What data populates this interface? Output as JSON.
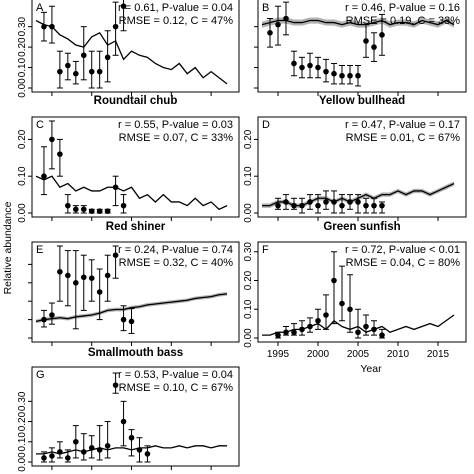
{
  "figure": {
    "y_axis_label": "Relative abundance",
    "x_axis_label": "Year"
  },
  "chart_data": [
    {
      "type": "line",
      "panel": "A",
      "title": "",
      "stats": {
        "line1": "r = 0.61, P-value = 0.04",
        "line2": "RMSE = 0.12, C = 47%"
      },
      "ylim": [
        0,
        0.45
      ],
      "yticks": [
        0,
        0.1,
        0.2,
        0.3
      ],
      "ytick_labels": [
        "0.00",
        "0.10",
        "0.20",
        "0.30"
      ],
      "xlim": [
        1993,
        2018
      ],
      "xticks": [
        1995,
        2000,
        2005,
        2010,
        2015
      ],
      "xtick_labels": [],
      "predicted": {
        "x": [
          1993,
          1994,
          1995,
          1996,
          1997,
          1998,
          1999,
          2000,
          2001,
          2002,
          2003,
          2004,
          2005,
          2006,
          2007,
          2008,
          2009,
          2010,
          2011,
          2012,
          2013,
          2014,
          2015,
          2016,
          2017
        ],
        "y": [
          0.33,
          0.31,
          0.3,
          0.26,
          0.24,
          0.21,
          0.2,
          0.25,
          0.27,
          0.21,
          0.23,
          0.14,
          0.18,
          0.16,
          0.15,
          0.12,
          0.1,
          0.09,
          0.12,
          0.07,
          0.1,
          0.05,
          0.08,
          0.05,
          0.02
        ],
        "band": 0
      },
      "observed": {
        "x": [
          1994,
          1995,
          1996,
          1997,
          1998,
          1999,
          2000,
          2001,
          2002,
          2003,
          2004
        ],
        "y": [
          0.3,
          0.3,
          0.08,
          0.11,
          0.07,
          0.16,
          0.08,
          0.08,
          0.15,
          0.3,
          0.4
        ],
        "lo": [
          0.23,
          0.22,
          0.0,
          0.04,
          0.02,
          0.04,
          0.0,
          0.0,
          0.03,
          0.16,
          0.28
        ],
        "hi": [
          0.37,
          0.4,
          0.18,
          0.17,
          0.13,
          0.3,
          0.18,
          0.18,
          0.28,
          0.42,
          0.45
        ]
      }
    },
    {
      "type": "line",
      "panel": "B",
      "title": "",
      "stats": {
        "line1": "r = 0.46, P-value = 0.16",
        "line2": "RMSE = 0.19, C = 33%"
      },
      "ylim": [
        0,
        0.45
      ],
      "yticks": [
        0,
        0.1,
        0.2,
        0.3
      ],
      "ytick_labels": [],
      "xlim": [
        1993,
        2018
      ],
      "xticks": [
        1995,
        2000,
        2005,
        2010,
        2015
      ],
      "xtick_labels": [],
      "predicted": {
        "x": [
          1993,
          1994,
          1995,
          1996,
          1997,
          1998,
          1999,
          2000,
          2001,
          2002,
          2003,
          2004,
          2005,
          2006,
          2007,
          2008,
          2009,
          2010,
          2011,
          2012,
          2013,
          2014,
          2015,
          2016,
          2017
        ],
        "y": [
          0.31,
          0.32,
          0.33,
          0.33,
          0.32,
          0.32,
          0.33,
          0.33,
          0.32,
          0.32,
          0.31,
          0.32,
          0.31,
          0.31,
          0.32,
          0.33,
          0.31,
          0.32,
          0.32,
          0.31,
          0.33,
          0.32,
          0.31,
          0.33,
          0.31
        ],
        "band": 0.015
      },
      "observed": {
        "x": [
          1994,
          1995,
          1996,
          1997,
          1998,
          1999,
          2000,
          2001,
          2002,
          2003,
          2004,
          2005,
          2006,
          2007,
          2008
        ],
        "y": [
          0.27,
          0.31,
          0.34,
          0.12,
          0.1,
          0.11,
          0.1,
          0.08,
          0.07,
          0.06,
          0.06,
          0.06,
          0.23,
          0.2,
          0.26
        ],
        "lo": [
          0.2,
          0.21,
          0.26,
          0.06,
          0.05,
          0.05,
          0.05,
          0.03,
          0.02,
          0.02,
          0.02,
          0.01,
          0.15,
          0.13,
          0.16
        ],
        "hi": [
          0.34,
          0.4,
          0.42,
          0.18,
          0.15,
          0.17,
          0.15,
          0.14,
          0.12,
          0.11,
          0.11,
          0.11,
          0.31,
          0.27,
          0.36
        ]
      }
    },
    {
      "type": "line",
      "panel": "C",
      "title": "Roundtail chub",
      "stats": {
        "line1": "r = 0.55, P-value = 0.03",
        "line2": "RMSE = 0.07, C = 33%"
      },
      "ylim": [
        0,
        0.25
      ],
      "yticks": [
        0,
        0.1,
        0.2
      ],
      "ytick_labels": [
        "0.00",
        "0.10",
        "0.20"
      ],
      "xlim": [
        1993,
        2018
      ],
      "xticks": [
        1995,
        2000,
        2005,
        2010,
        2015
      ],
      "xtick_labels": [],
      "predicted": {
        "x": [
          1993,
          1994,
          1995,
          1996,
          1997,
          1998,
          1999,
          2000,
          2001,
          2002,
          2003,
          2004,
          2005,
          2006,
          2007,
          2008,
          2009,
          2010,
          2011,
          2012,
          2013,
          2014,
          2015,
          2016,
          2017
        ],
        "y": [
          0.1,
          0.09,
          0.1,
          0.07,
          0.08,
          0.06,
          0.07,
          0.06,
          0.06,
          0.07,
          0.07,
          0.06,
          0.07,
          0.04,
          0.05,
          0.03,
          0.05,
          0.03,
          0.03,
          0.02,
          0.04,
          0.02,
          0.03,
          0.01,
          0.02
        ],
        "band": 0
      },
      "observed": {
        "x": [
          1994,
          1995,
          1996,
          1997,
          1998,
          1999,
          2000,
          2001,
          2002,
          2003,
          2004
        ],
        "y": [
          0.1,
          0.2,
          0.16,
          0.02,
          0.01,
          0.01,
          0.005,
          0.005,
          0.005,
          0.07,
          0.02
        ],
        "lo": [
          0.05,
          0.12,
          0.1,
          0.0,
          0.0,
          0.0,
          0.0,
          0.0,
          0.0,
          0.02,
          0.0
        ],
        "hi": [
          0.18,
          0.25,
          0.2,
          0.05,
          0.02,
          0.02,
          0.01,
          0.01,
          0.01,
          0.1,
          0.05
        ]
      }
    },
    {
      "type": "line",
      "panel": "D",
      "title": "Yellow bullhead",
      "stats": {
        "line1": "r = 0.47, P-value = 0.17",
        "line2": "RMSE = 0.01, C = 67%"
      },
      "ylim": [
        0,
        0.25
      ],
      "yticks": [
        0,
        0.1,
        0.2
      ],
      "ytick_labels": [
        "0.00",
        "0.10",
        "0.20"
      ],
      "xlim": [
        1993,
        2018
      ],
      "xticks": [
        1995,
        2000,
        2005,
        2010,
        2015
      ],
      "xtick_labels": [],
      "predicted": {
        "x": [
          1993,
          1994,
          1995,
          1996,
          1997,
          1998,
          1999,
          2000,
          2001,
          2002,
          2003,
          2004,
          2005,
          2006,
          2007,
          2008,
          2009,
          2010,
          2011,
          2012,
          2013,
          2014,
          2015,
          2016,
          2017
        ],
        "y": [
          0.02,
          0.02,
          0.03,
          0.03,
          0.02,
          0.02,
          0.03,
          0.04,
          0.04,
          0.03,
          0.04,
          0.03,
          0.04,
          0.05,
          0.04,
          0.05,
          0.05,
          0.06,
          0.05,
          0.06,
          0.06,
          0.05,
          0.06,
          0.07,
          0.08
        ],
        "band": 0.006
      },
      "observed": {
        "x": [
          1995,
          1996,
          1997,
          1998,
          1999,
          2000,
          2001,
          2002,
          2003,
          2004,
          2005,
          2006,
          2007,
          2008
        ],
        "y": [
          0.02,
          0.03,
          0.02,
          0.02,
          0.03,
          0.02,
          0.03,
          0.03,
          0.02,
          0.03,
          0.03,
          0.02,
          0.02,
          0.02
        ],
        "lo": [
          0.01,
          0.01,
          0.01,
          0.0,
          0.01,
          0.0,
          0.01,
          0.0,
          0.0,
          0.01,
          0.0,
          0.0,
          0.0,
          0.0
        ],
        "hi": [
          0.04,
          0.05,
          0.04,
          0.04,
          0.05,
          0.05,
          0.06,
          0.06,
          0.05,
          0.05,
          0.05,
          0.04,
          0.04,
          0.03
        ]
      }
    },
    {
      "type": "line",
      "panel": "E",
      "title": "Red shiner",
      "stats": {
        "line1": "r = 0.24, P-value = 0.74",
        "line2": "RMSE = 0.32, C = 40%"
      },
      "ylim": [
        0,
        1.0
      ],
      "yticks": [
        0,
        0.2,
        0.4,
        0.6,
        0.8
      ],
      "ytick_labels": [],
      "xlim": [
        1993,
        2018
      ],
      "xticks": [
        1995,
        2000,
        2005,
        2010,
        2015
      ],
      "xtick_labels": [],
      "predicted": {
        "x": [
          1993,
          1994,
          1995,
          1996,
          1997,
          1998,
          1999,
          2000,
          2001,
          2002,
          2003,
          2004,
          2005,
          2006,
          2007,
          2008,
          2009,
          2010,
          2011,
          2012,
          2013,
          2014,
          2015,
          2016,
          2017
        ],
        "y": [
          0.18,
          0.2,
          0.21,
          0.22,
          0.21,
          0.23,
          0.24,
          0.25,
          0.27,
          0.3,
          0.31,
          0.31,
          0.33,
          0.34,
          0.36,
          0.37,
          0.38,
          0.39,
          0.4,
          0.41,
          0.43,
          0.44,
          0.45,
          0.47,
          0.48
        ],
        "band": 0.02
      },
      "observed": {
        "x": [
          1994,
          1995,
          1996,
          1997,
          1998,
          1999,
          2000,
          2001,
          2002,
          2003,
          2004,
          2005
        ],
        "y": [
          0.2,
          0.25,
          0.72,
          0.68,
          0.6,
          0.66,
          0.65,
          0.5,
          0.68,
          0.9,
          0.2,
          0.18
        ],
        "lo": [
          0.12,
          0.15,
          0.4,
          0.35,
          0.1,
          0.3,
          0.4,
          0.2,
          0.4,
          0.65,
          0.08,
          0.05
        ],
        "hi": [
          0.3,
          0.38,
          1.0,
          0.95,
          0.95,
          0.9,
          0.85,
          0.75,
          0.9,
          1.0,
          0.35,
          0.32
        ]
      }
    },
    {
      "type": "line",
      "panel": "F",
      "title": "Green sunfish",
      "stats": {
        "line1": "r = 0.72, P-value < 0.01",
        "line2": "RMSE = 0.04, C = 80%"
      },
      "ylim": [
        0,
        0.32
      ],
      "yticks": [
        0,
        0.1,
        0.2,
        0.3
      ],
      "ytick_labels": [
        "0.00",
        "0.10",
        "0.20",
        "0.30"
      ],
      "xlim": [
        1993,
        2018
      ],
      "xticks": [
        1995,
        2000,
        2005,
        2010,
        2015
      ],
      "xtick_labels": [
        "1995",
        "2000",
        "2005",
        "2010",
        "2015"
      ],
      "predicted": {
        "x": [
          1993,
          1994,
          1995,
          1996,
          1997,
          1998,
          1999,
          2000,
          2001,
          2002,
          2003,
          2004,
          2005,
          2006,
          2007,
          2008,
          2009,
          2010,
          2011,
          2012,
          2013,
          2014,
          2015,
          2016,
          2017
        ],
        "y": [
          0.01,
          0.01,
          0.02,
          0.02,
          0.03,
          0.03,
          0.04,
          0.05,
          0.03,
          0.06,
          0.04,
          0.03,
          0.04,
          0.02,
          0.03,
          0.04,
          0.02,
          0.03,
          0.04,
          0.03,
          0.04,
          0.05,
          0.04,
          0.06,
          0.08
        ],
        "band": 0
      },
      "observed": {
        "x": [
          1995,
          1996,
          1997,
          1998,
          1999,
          2000,
          2001,
          2002,
          2003,
          2004,
          2005,
          2006,
          2007,
          2008
        ],
        "y": [
          0.01,
          0.02,
          0.02,
          0.03,
          0.04,
          0.06,
          0.08,
          0.2,
          0.12,
          0.1,
          0.02,
          0.04,
          0.03,
          0.01
        ],
        "lo": [
          0.0,
          0.01,
          0.01,
          0.01,
          0.02,
          0.03,
          0.03,
          0.05,
          0.06,
          0.02,
          0.0,
          0.01,
          0.01,
          0.0
        ],
        "hi": [
          0.02,
          0.04,
          0.05,
          0.06,
          0.07,
          0.1,
          0.15,
          0.3,
          0.25,
          0.22,
          0.1,
          0.08,
          0.06,
          0.03
        ]
      }
    },
    {
      "type": "line",
      "panel": "G",
      "title": "Smallmouth bass",
      "stats": {
        "line1": "r = 0.53, P-value = 0.04",
        "line2": "RMSE = 0.10, C = 67%"
      },
      "ylim": [
        0,
        0.45
      ],
      "yticks": [
        0,
        0.1,
        0.2,
        0.3
      ],
      "ytick_labels": [
        "0.00",
        "0.10",
        "0.20",
        "0.30"
      ],
      "xlim": [
        1993,
        2018
      ],
      "xticks": [
        1995,
        2000,
        2005,
        2010,
        2015
      ],
      "xtick_labels": [],
      "predicted": {
        "x": [
          1993,
          1994,
          1995,
          1996,
          1997,
          1998,
          1999,
          2000,
          2001,
          2002,
          2003,
          2004,
          2005,
          2006,
          2007,
          2008,
          2009,
          2010,
          2011,
          2012,
          2013,
          2014,
          2015,
          2016,
          2017
        ],
        "y": [
          0.04,
          0.04,
          0.05,
          0.04,
          0.05,
          0.06,
          0.05,
          0.06,
          0.07,
          0.06,
          0.07,
          0.07,
          0.06,
          0.07,
          0.07,
          0.08,
          0.07,
          0.07,
          0.08,
          0.07,
          0.08,
          0.08,
          0.07,
          0.08,
          0.08
        ],
        "band": 0
      },
      "observed": {
        "x": [
          1994,
          1995,
          1996,
          1997,
          1998,
          1999,
          2000,
          2001,
          2002,
          2003,
          2004,
          2005,
          2006,
          2007
        ],
        "y": [
          0.02,
          0.03,
          0.05,
          0.02,
          0.1,
          0.05,
          0.07,
          0.06,
          0.08,
          0.38,
          0.2,
          0.12,
          0.06,
          0.04
        ],
        "lo": [
          0.0,
          0.0,
          0.02,
          0.0,
          0.02,
          0.01,
          0.02,
          0.01,
          0.02,
          0.34,
          0.08,
          0.03,
          0.0,
          0.0
        ],
        "hi": [
          0.05,
          0.07,
          0.1,
          0.06,
          0.18,
          0.14,
          0.13,
          0.18,
          0.2,
          0.44,
          0.3,
          0.16,
          0.12,
          0.08
        ]
      }
    }
  ]
}
